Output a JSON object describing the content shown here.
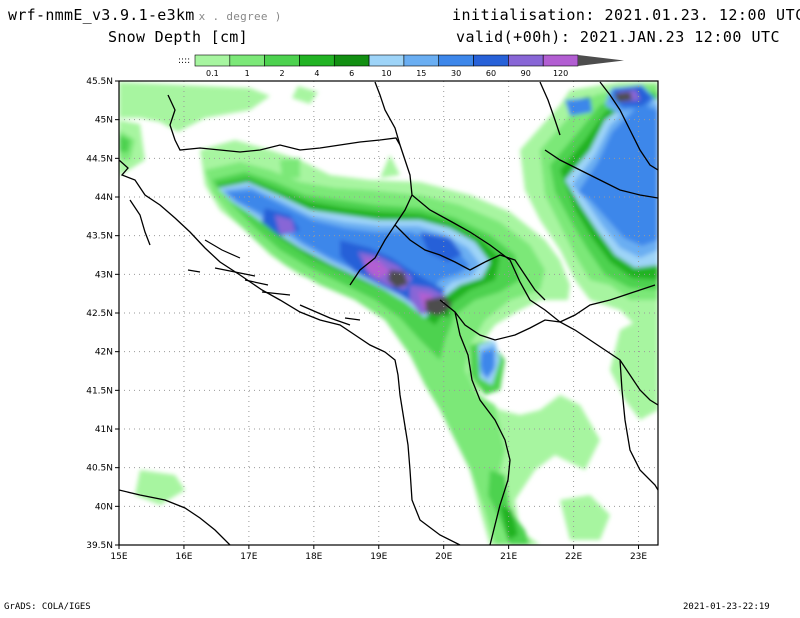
{
  "header": {
    "model_title": "wrf-nmmE_v3.9.1-e3km",
    "axes_note": "x . degree )",
    "variable_title": "Snow Depth [cm]",
    "initialisation": "initialisation: 2021.01.23.  12:00 UTC",
    "valid": "valid(+00h): 2021.JAN.23 12:00 UTC"
  },
  "legend": {
    "below_symbol": "::::",
    "thresholds": [
      "0.1",
      "1",
      "2",
      "4",
      "6",
      "10",
      "15",
      "30",
      "60",
      "90",
      "120"
    ],
    "colors": [
      "#a7f5a0",
      "#7ce878",
      "#4dd24f",
      "#22b324",
      "#128f12",
      "#9ed4f8",
      "#6aaef2",
      "#3d87ea",
      "#2761d8",
      "#8866d6",
      "#b25ed2",
      "#4d4d4d"
    ]
  },
  "map": {
    "lon_labels": [
      "15E",
      "16E",
      "17E",
      "18E",
      "19E",
      "20E",
      "21E",
      "22E",
      "23E"
    ],
    "lat_labels": [
      "45.5N",
      "45N",
      "44.5N",
      "44N",
      "43.5N",
      "43N",
      "42.5N",
      "42N",
      "41.5N",
      "41N",
      "40.5N",
      "40N",
      "39.5N"
    ],
    "lon_range": [
      15,
      23.3
    ],
    "lat_range": [
      39.5,
      45.5
    ],
    "grid": true
  },
  "footer": {
    "left": "GrADS: COLA/IGES",
    "right": "2021-01-23-22:19"
  }
}
